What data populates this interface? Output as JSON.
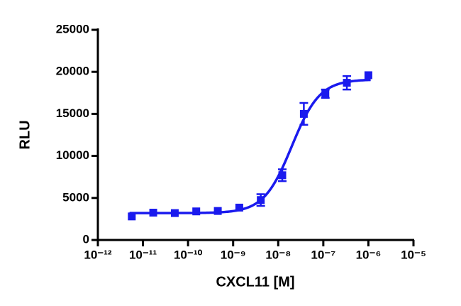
{
  "chart_data": {
    "type": "scatter",
    "xlabel": "CXCL11 [M]",
    "ylabel": "RLU",
    "x": [
      5.65e-12,
      1.69e-11,
      5.08e-11,
      1.52e-10,
      4.57e-10,
      1.37e-09,
      4.1e-09,
      1.23e-08,
      3.7e-08,
      1.11e-07,
      3.33e-07,
      1e-06
    ],
    "series": [
      {
        "color": "#1a1aee",
        "values": [
          2800,
          3250,
          3200,
          3400,
          3450,
          3850,
          4750,
          7700,
          15000,
          17400,
          18700,
          19600
        ],
        "errors": [
          0,
          0,
          0,
          0,
          0,
          0,
          700,
          700,
          1300,
          500,
          800,
          0
        ]
      }
    ],
    "fit": {
      "bottom": 3200,
      "top": 19100,
      "ec50": 2e-08,
      "hill": 1.4
    },
    "xscale": "log",
    "xlim": [
      1e-12,
      1e-05
    ],
    "xticks": [
      {
        "value": 1e-12,
        "label": "10⁻¹²"
      },
      {
        "value": 1e-11,
        "label": "10⁻¹¹"
      },
      {
        "value": 1e-10,
        "label": "10⁻¹⁰"
      },
      {
        "value": 1e-09,
        "label": "10⁻⁹"
      },
      {
        "value": 1e-08,
        "label": "10⁻⁸"
      },
      {
        "value": 1e-07,
        "label": "10⁻⁷"
      },
      {
        "value": 1e-06,
        "label": "10⁻⁶"
      },
      {
        "value": 1e-05,
        "label": "10⁻⁵"
      }
    ],
    "ylim": [
      0,
      25000
    ],
    "yticks": [
      0,
      5000,
      10000,
      15000,
      20000,
      25000
    ]
  }
}
